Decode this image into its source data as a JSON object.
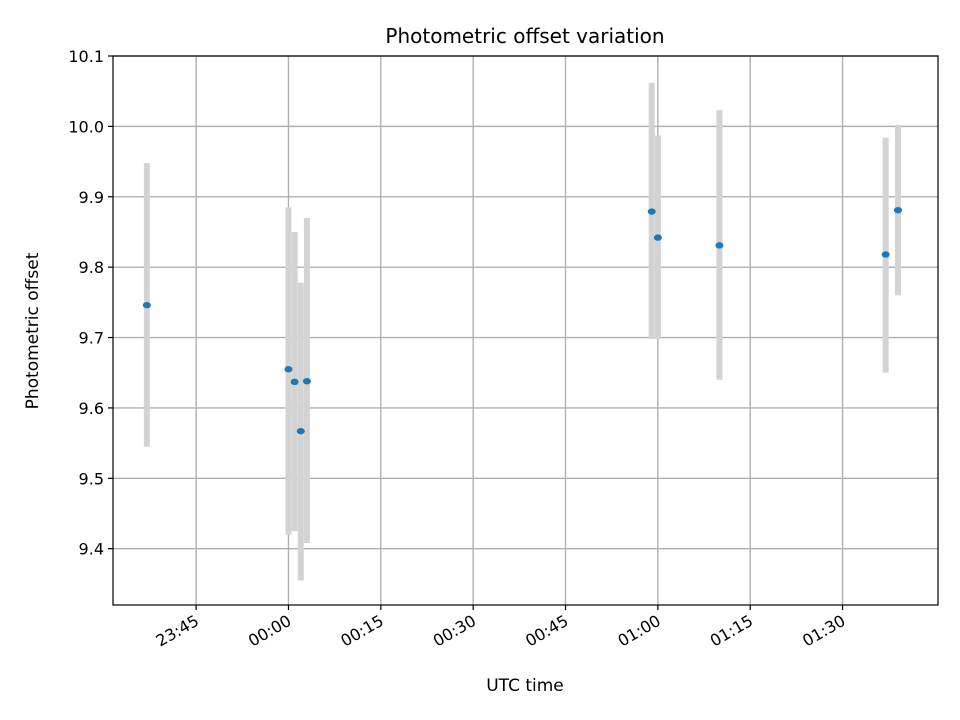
{
  "chart_data": {
    "type": "scatter",
    "title": "Photometric offset variation",
    "xlabel": "UTC time",
    "ylabel": "Photometric offset",
    "xlim_minutes": [
      -28.5,
      105.5
    ],
    "ylim": [
      9.32,
      10.1
    ],
    "yticks": [
      9.4,
      9.5,
      9.6,
      9.7,
      9.8,
      9.9,
      10.0,
      10.1
    ],
    "ytick_labels": [
      "9.4",
      "9.5",
      "9.6",
      "9.7",
      "9.8",
      "9.9",
      "10.0",
      "10.1"
    ],
    "xticks": [
      {
        "label": "23:45",
        "minutes": -15
      },
      {
        "label": "00:00",
        "minutes": 0
      },
      {
        "label": "00:15",
        "minutes": 15
      },
      {
        "label": "00:30",
        "minutes": 30
      },
      {
        "label": "00:45",
        "minutes": 45
      },
      {
        "label": "01:00",
        "minutes": 60
      },
      {
        "label": "01:15",
        "minutes": 75
      },
      {
        "label": "01:30",
        "minutes": 90
      }
    ],
    "grid": true,
    "point_color": "#1f77b4",
    "errorbar_color": "#d3d3d3",
    "points": [
      {
        "time": "23:37",
        "y": 9.746,
        "low": 9.545,
        "high": 9.948
      },
      {
        "time": "00:00",
        "y": 9.655,
        "low": 9.42,
        "high": 9.885
      },
      {
        "time": "00:01",
        "y": 9.637,
        "low": 9.425,
        "high": 9.85
      },
      {
        "time": "00:02",
        "y": 9.567,
        "low": 9.355,
        "high": 9.778
      },
      {
        "time": "00:03",
        "y": 9.638,
        "low": 9.408,
        "high": 9.87
      },
      {
        "time": "00:59",
        "y": 9.879,
        "low": 9.698,
        "high": 10.062
      },
      {
        "time": "01:00",
        "y": 9.842,
        "low": 9.698,
        "high": 9.987
      },
      {
        "time": "01:10",
        "y": 9.831,
        "low": 9.64,
        "high": 10.023
      },
      {
        "time": "01:37",
        "y": 9.818,
        "low": 9.65,
        "high": 9.984
      },
      {
        "time": "01:39",
        "y": 9.881,
        "low": 9.76,
        "high": 10.002
      }
    ]
  }
}
